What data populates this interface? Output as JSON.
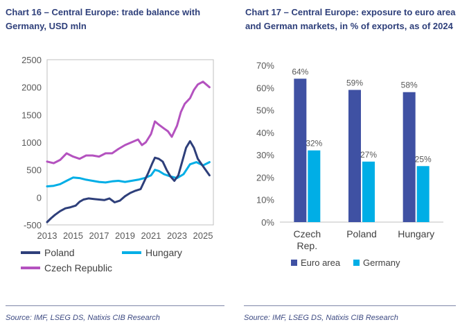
{
  "left": {
    "title": "Chart 16 – Central Europe:  trade balance with Germany, USD mln",
    "source": "Source: IMF, LSEG DS, Natixis CIB Research"
  },
  "right": {
    "title": "Chart 17 – Central Europe: exposure to euro area and German markets, in % of exports, as of 2024",
    "source": "Source: IMF, LSEG DS, Natixis CIB Research"
  },
  "chart_data": [
    {
      "type": "line",
      "title": "Chart 16 – Central Europe:  trade balance with Germany, USD mln",
      "xlabel": "",
      "ylabel": "",
      "xlim": [
        2013,
        2025.8
      ],
      "ylim": [
        -500,
        2500
      ],
      "yticks": [
        "-500",
        "0",
        "500",
        "1000",
        "1500",
        "2000",
        "2500"
      ],
      "xticks": [
        "2013",
        "2015",
        "2017",
        "2019",
        "2021",
        "2023",
        "2025"
      ],
      "xtick_values": [
        2013,
        2015,
        2017,
        2019,
        2021,
        2023,
        2025
      ],
      "ytick_values": [
        -500,
        0,
        500,
        1000,
        1500,
        2000,
        2500
      ],
      "legend_position": "bottom",
      "series": [
        {
          "name": "Poland",
          "color": "#2e3f7a",
          "x": [
            2013,
            2013.3,
            2013.6,
            2014,
            2014.4,
            2014.8,
            2015.2,
            2015.5,
            2015.8,
            2016.2,
            2016.6,
            2017,
            2017.4,
            2017.8,
            2018.2,
            2018.6,
            2019,
            2019.4,
            2019.8,
            2020.2,
            2020.5,
            2020.8,
            2021.1,
            2021.3,
            2021.6,
            2021.9,
            2022.2,
            2022.5,
            2022.8,
            2023.1,
            2023.4,
            2023.7,
            2024,
            2024.3,
            2024.6,
            2024.9,
            2025.2,
            2025.5
          ],
          "values": [
            -450,
            -380,
            -320,
            -250,
            -200,
            -180,
            -150,
            -80,
            -40,
            -20,
            -30,
            -40,
            -50,
            -20,
            -90,
            -60,
            20,
            80,
            120,
            150,
            300,
            450,
            620,
            720,
            700,
            650,
            500,
            380,
            300,
            400,
            650,
            900,
            1020,
            900,
            700,
            600,
            500,
            400
          ]
        },
        {
          "name": "Hungary",
          "color": "#00aee6",
          "x": [
            2013,
            2013.5,
            2014,
            2014.5,
            2015,
            2015.5,
            2016,
            2016.5,
            2017,
            2017.5,
            2018,
            2018.5,
            2019,
            2019.5,
            2020,
            2020.5,
            2021,
            2021.3,
            2021.6,
            2022,
            2022.5,
            2023,
            2023.5,
            2024,
            2024.5,
            2025,
            2025.5
          ],
          "values": [
            200,
            210,
            240,
            300,
            360,
            350,
            320,
            300,
            280,
            270,
            290,
            300,
            280,
            300,
            320,
            350,
            400,
            500,
            480,
            420,
            380,
            350,
            420,
            600,
            640,
            580,
            640
          ]
        },
        {
          "name": "Czech Republic",
          "color": "#b452bf",
          "x": [
            2013,
            2013.5,
            2014,
            2014.5,
            2015,
            2015.5,
            2016,
            2016.5,
            2017,
            2017.5,
            2018,
            2018.5,
            2019,
            2019.5,
            2020,
            2020.3,
            2020.6,
            2021,
            2021.3,
            2021.6,
            2022,
            2022.3,
            2022.6,
            2023,
            2023.3,
            2023.6,
            2024,
            2024.3,
            2024.6,
            2025,
            2025.5
          ],
          "values": [
            650,
            620,
            680,
            800,
            740,
            700,
            760,
            760,
            740,
            800,
            800,
            880,
            950,
            1000,
            1050,
            950,
            1000,
            1150,
            1380,
            1320,
            1250,
            1200,
            1100,
            1300,
            1550,
            1700,
            1800,
            1950,
            2050,
            2100,
            2000
          ]
        }
      ]
    },
    {
      "type": "bar",
      "title": "Chart 17 – Central Europe: exposure to euro area and German markets, in % of exports, as of 2024",
      "categories": [
        "Czech Rep.",
        "Poland",
        "Hungary"
      ],
      "category_lines": [
        [
          "Czech",
          "Rep."
        ],
        [
          "Poland"
        ],
        [
          "Hungary"
        ]
      ],
      "ylim": [
        0,
        70
      ],
      "yticks": [
        "0%",
        "10%",
        "20%",
        "30%",
        "40%",
        "50%",
        "60%",
        "70%"
      ],
      "ytick_values": [
        0,
        10,
        20,
        30,
        40,
        50,
        60,
        70
      ],
      "legend_position": "bottom",
      "series": [
        {
          "name": "Euro area",
          "color": "#3f51a3",
          "values": [
            64,
            59,
            58
          ],
          "labels": [
            "64%",
            "59%",
            "58%"
          ]
        },
        {
          "name": "Germany",
          "color": "#00aee6",
          "values": [
            32,
            27,
            25
          ],
          "labels": [
            "32%",
            "27%",
            "25%"
          ]
        }
      ]
    }
  ]
}
